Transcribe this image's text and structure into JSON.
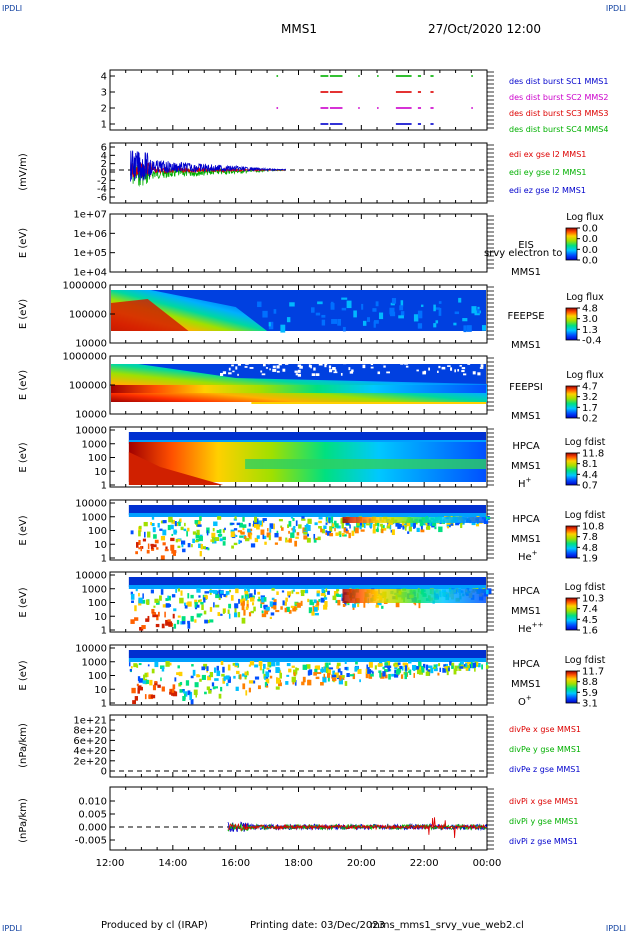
{
  "header": {
    "corner_tl": "IPDLI",
    "corner_tr": "IPDLI",
    "corner_bl": "IPDLI",
    "corner_br": "IPDLI",
    "spacecraft": "MMS1",
    "datetime": "27/Oct/2020 12:00"
  },
  "footer": {
    "producer": "Produced by cl (IRAP)",
    "printing_date": "Printing date: 03/Dec/2023",
    "script": "mms_mms1_srvy_vue_web2.cl"
  },
  "x_axis": {
    "ticks": [
      "12:00",
      "14:00",
      "16:00",
      "18:00",
      "20:00",
      "22:00",
      "00:00"
    ],
    "range_hours": [
      12,
      24
    ]
  },
  "colors": {
    "blue": "#0000cc",
    "red": "#dd0000",
    "magenta": "#cc00cc",
    "green": "#00b000"
  },
  "panels": {
    "burst": {
      "yticks": [
        "4",
        "3",
        "2",
        "1"
      ],
      "labels": [
        "des dist burst SC1 MMS1",
        "des dist burst SC2 MMS2",
        "des dist burst SC3 MMS3",
        "des dist burst SC4 MMS4"
      ],
      "label_colors": [
        "#0000cc",
        "#cc00cc",
        "#dd0000",
        "#00b000"
      ],
      "row_colors": [
        "#00b000",
        "#dd0000",
        "#cc00cc",
        "#0000cc"
      ],
      "intervals_hours": [
        [
          17.3,
          17.35
        ],
        [
          18.7,
          18.95
        ],
        [
          19.0,
          19.4
        ],
        [
          19.9,
          19.95
        ],
        [
          20.5,
          20.55
        ],
        [
          21.1,
          21.6
        ],
        [
          21.8,
          21.9
        ],
        [
          22.2,
          22.3
        ],
        [
          23.5,
          23.55
        ]
      ]
    },
    "efield": {
      "ylabel": "(mV/m)",
      "yticks": [
        "6",
        "4",
        "2",
        "0",
        "-2",
        "-4",
        "-6"
      ],
      "labels": [
        "edi ex gse l2 MMS1",
        "edi ey gse l2 MMS1",
        "edi ez gse l2 MMS1"
      ],
      "label_colors": [
        "#dd0000",
        "#00b000",
        "#0000cc"
      ]
    },
    "eis": {
      "ylabel": "E (eV)",
      "yticks": [
        "1e+07",
        "1e+06",
        "1e+05",
        "1e+04"
      ],
      "name": "EIS",
      "overlay": "srvy electron to",
      "sc": "MMS1",
      "cb_title": "Log flux",
      "cb_ticks": [
        "0.0",
        "0.0",
        "0.0",
        "0.0"
      ]
    },
    "feepse": {
      "ylabel": "E (eV)",
      "yticks": [
        "1000000",
        "100000",
        "10000"
      ],
      "name": "FEEPSE",
      "sc": "MMS1",
      "cb_title": "Log flux",
      "cb_ticks": [
        "4.8",
        "3.0",
        "1.3",
        "-0.4"
      ]
    },
    "feepsi": {
      "ylabel": "E (eV)",
      "yticks": [
        "1000000",
        "100000",
        "10000"
      ],
      "name": "FEEPSI",
      "sc": "MMS1",
      "cb_title": "Log flux",
      "cb_ticks": [
        "4.7",
        "3.2",
        "1.7",
        "0.2"
      ]
    },
    "hpca_h": {
      "ylabel": "E (eV)",
      "yticks": [
        "10000",
        "1000",
        "100",
        "10",
        "1"
      ],
      "name": "HPCA",
      "sc": "MMS1",
      "species": "H",
      "charge": "+",
      "cb_title": "Log fdist",
      "cb_ticks": [
        "11.8",
        "8.1",
        "4.4",
        "0.7"
      ]
    },
    "hpca_he": {
      "ylabel": "E (eV)",
      "yticks": [
        "10000",
        "1000",
        "100",
        "10",
        "1"
      ],
      "name": "HPCA",
      "sc": "MMS1",
      "species": "He",
      "charge": "+",
      "cb_title": "Log fdist",
      "cb_ticks": [
        "10.8",
        "7.8",
        "4.8",
        "1.9"
      ]
    },
    "hpca_he2": {
      "ylabel": "E (eV)",
      "yticks": [
        "10000",
        "1000",
        "100",
        "10",
        "1"
      ],
      "name": "HPCA",
      "sc": "MMS1",
      "species": "He",
      "charge": "++",
      "cb_title": "Log fdist",
      "cb_ticks": [
        "10.3",
        "7.4",
        "4.5",
        "1.6"
      ]
    },
    "hpca_o": {
      "ylabel": "E (eV)",
      "yticks": [
        "10000",
        "1000",
        "100",
        "10",
        "1"
      ],
      "name": "HPCA",
      "sc": "MMS1",
      "species": "O",
      "charge": "+",
      "cb_title": "Log fdist",
      "cb_ticks": [
        "11.7",
        "8.8",
        "5.9",
        "3.1"
      ]
    },
    "divpe": {
      "ylabel": "(nPa/km)",
      "yticks": [
        "1e+21",
        "8e+20",
        "6e+20",
        "4e+20",
        "2e+20",
        "0"
      ],
      "labels": [
        "divPe x gse MMS1",
        "divPe y gse MMS1",
        "divPe z gse MMS1"
      ],
      "label_colors": [
        "#dd0000",
        "#00b000",
        "#0000cc"
      ]
    },
    "divpi": {
      "ylabel": "(nPa/km)",
      "yticks": [
        "0.010",
        "0.005",
        "0.000",
        "-0.005"
      ],
      "labels": [
        "divPi x gse MMS1",
        "divPi y gse MMS1",
        "divPi z gse MMS1"
      ],
      "label_colors": [
        "#dd0000",
        "#00b000",
        "#0000cc"
      ]
    }
  },
  "chart_data": {
    "type": "spectrogram-stack",
    "x_range_hours": [
      12,
      24
    ],
    "panels": [
      "burst",
      "efield",
      "eis",
      "feepse",
      "feepsi",
      "hpca_h",
      "hpca_he",
      "hpca_he2",
      "hpca_o",
      "divpe",
      "divpi"
    ]
  }
}
